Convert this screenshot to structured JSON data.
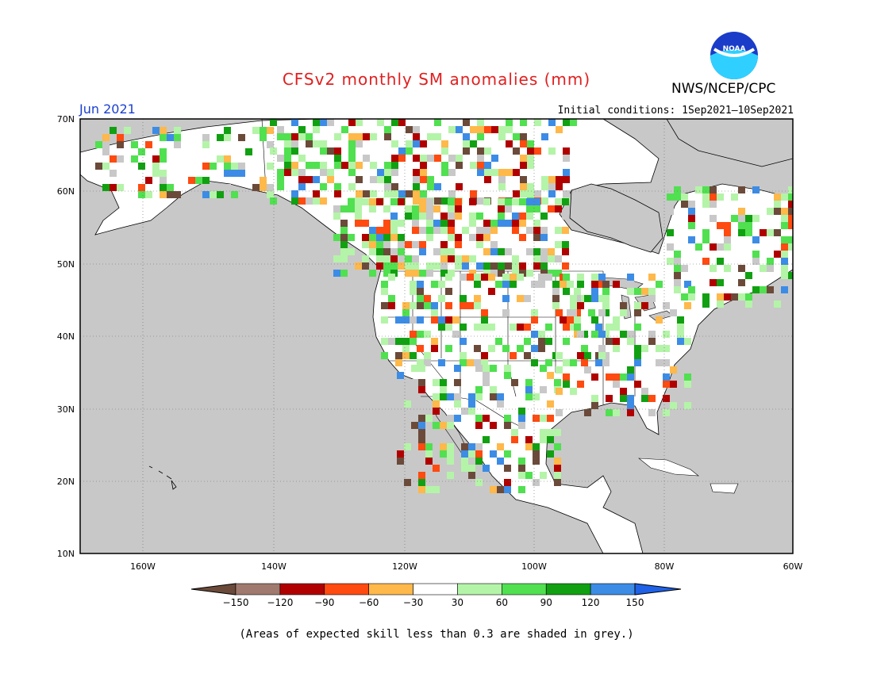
{
  "title": "CFSv2 monthly SM anomalies (mm)",
  "agency": "NWS/NCEP/CPC",
  "logo_text": "NOAA",
  "month": "Jun 2021",
  "initial_conditions": "Initial conditions: 1Sep2021–10Sep2021",
  "note": "(Areas of expected skill less than 0.3 are shaded in grey.)",
  "lat_ticks": [
    "70N",
    "60N",
    "50N",
    "40N",
    "30N",
    "20N",
    "10N"
  ],
  "lon_ticks": [
    "160W",
    "140W",
    "120W",
    "100W",
    "80W",
    "60W"
  ],
  "colorbar": {
    "labels": [
      "−150",
      "−120",
      "−90",
      "−60",
      "−30",
      "30",
      "60",
      "90",
      "120",
      "150"
    ],
    "colors": [
      "#6b4a3a",
      "#a07a6e",
      "#b00000",
      "#ff4a10",
      "#ffb84a",
      "#ffffff",
      "#b4f4a8",
      "#50e050",
      "#11a011",
      "#3c8ce6",
      "#1f62e8"
    ]
  },
  "colors": {
    "ocean": "#c8c8c8",
    "land": "#ffffff",
    "skill_grey": "#c8c8c8"
  }
}
